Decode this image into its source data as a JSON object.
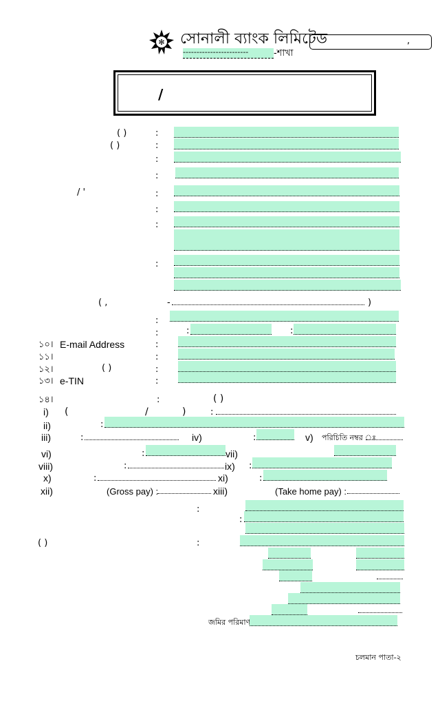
{
  "header": {
    "bank_name": "সোনালী ব্যাংক লিমিটেড",
    "branch_label": "-শাখা",
    "branch_dashes": "------------------------",
    "date_comma": ","
  },
  "title_box": {
    "slash": "/"
  },
  "rows": {
    "r1_paren": "(        )",
    "r2_paren": "(          )",
    "r5_marks": "/   '",
    "address_paren_open": "(        ,",
    "address_dash": "-",
    "address_paren_close": ")",
    "colon": ":"
  },
  "numbered": [
    {
      "num": "১০।",
      "label": "E-mail Address"
    },
    {
      "num": "১১।",
      "label": ""
    },
    {
      "num": "১২।",
      "label": "(          )"
    },
    {
      "num": "১৩।",
      "label": "e-TIN"
    },
    {
      "num": "১৪।",
      "label": ""
    }
  ],
  "section14": {
    "paren": "(        )",
    "i": "i)",
    "i_open": "(",
    "i_slash": "/",
    "i_close": ")",
    "ii": "ii)",
    "iii": "iii)",
    "iv": "iv)",
    "v": "v)",
    "v_label": "পরিচিতি নম্বর ঃ",
    "vi": "vi)",
    "vii": "vii)",
    "viii": "viii)",
    "ix": "ix)",
    "x": "x)",
    "xi": "xi)",
    "xii": "xii)",
    "gross_pay": "(Gross pay) :",
    "xiii": "xiii)",
    "take_home": "(Take home pay) :"
  },
  "lower": {
    "paren": "(  )",
    "land_label": "জমির পরিমাণ:"
  },
  "footer": {
    "continued": "চলমান পাতা-২"
  }
}
